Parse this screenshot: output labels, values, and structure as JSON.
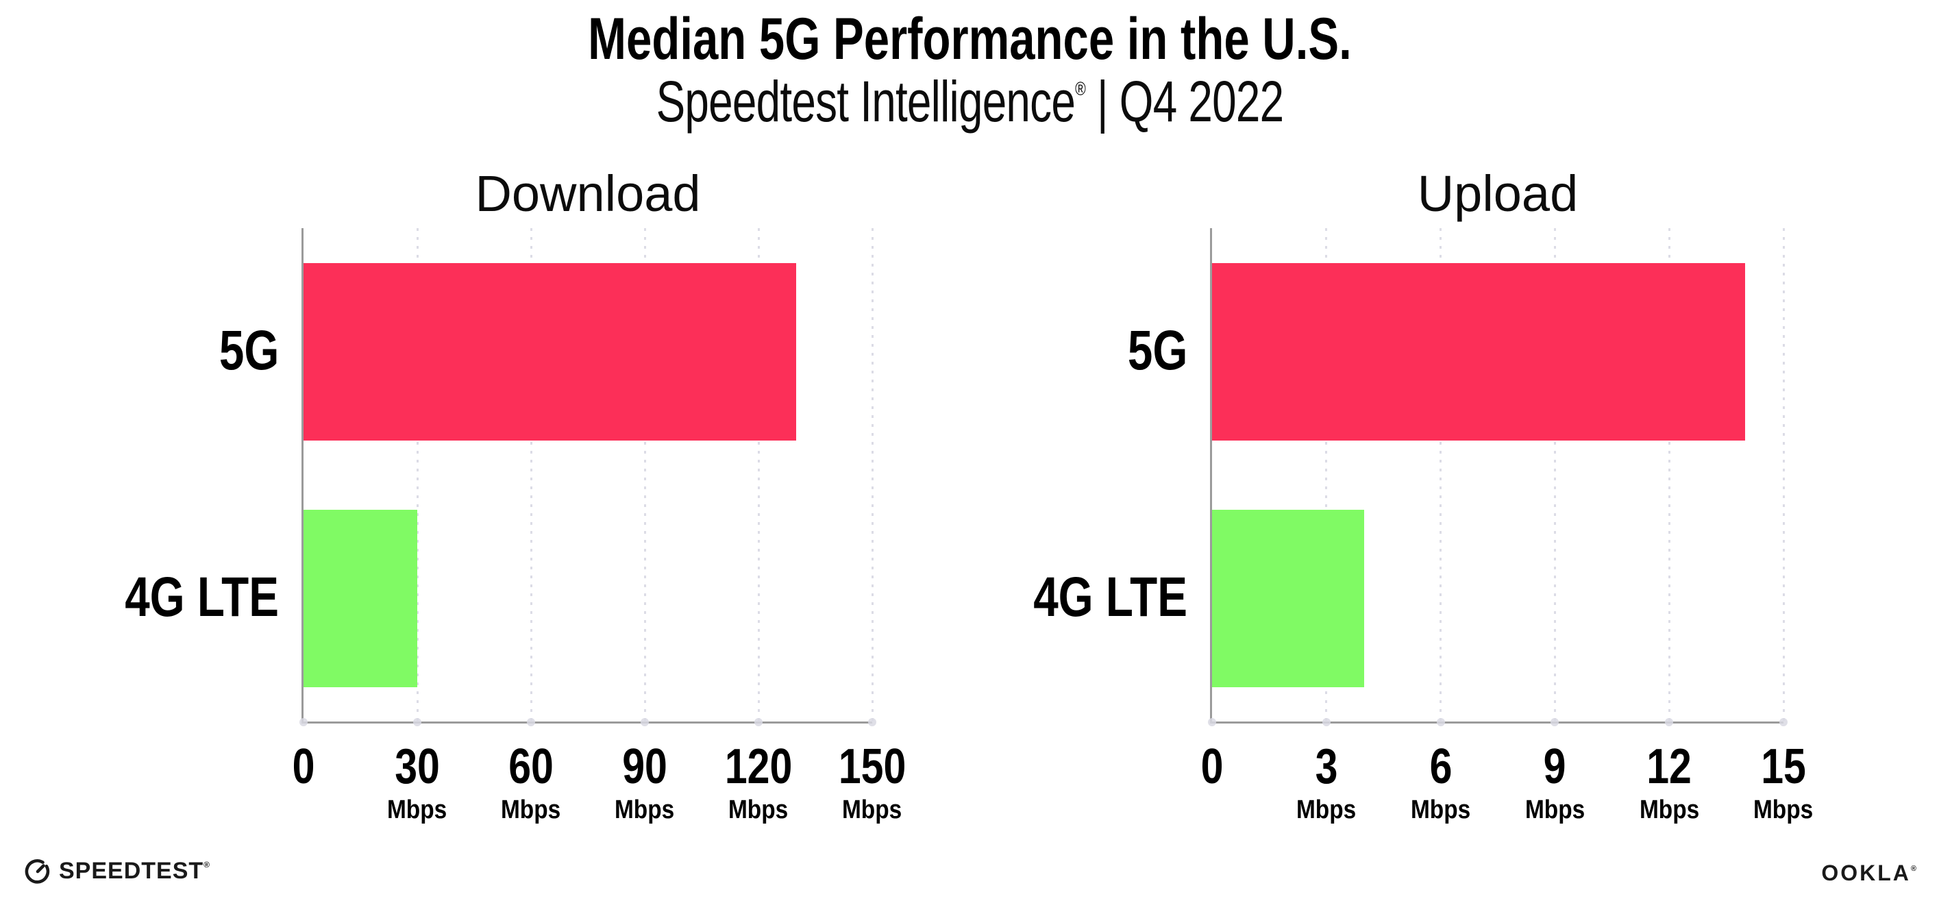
{
  "title": "Median 5G Performance in the U.S.",
  "subtitle": {
    "brand": "Speedtest Intelligence",
    "reg": "®",
    "rest": " | Q4 2022"
  },
  "colors": {
    "bar_5g": "#fc2f58",
    "bar_4g": "#80fa64",
    "axis": "#9b9b9b",
    "gridline": "#dcdce6",
    "text": "#000000"
  },
  "chart_data": [
    {
      "type": "bar",
      "orientation": "horizontal",
      "title": "Download",
      "categories": [
        "5G",
        "4G LTE"
      ],
      "values": [
        130,
        30
      ],
      "unit": "Mbps",
      "xlim": [
        0,
        150
      ],
      "xticks": [
        0,
        30,
        60,
        90,
        120,
        150
      ],
      "show_unit_on_zero": false,
      "bar_colors": [
        "#fc2f58",
        "#80fa64"
      ],
      "grid": "dotted-vertical",
      "legend": "none"
    },
    {
      "type": "bar",
      "orientation": "horizontal",
      "title": "Upload",
      "categories": [
        "5G",
        "4G LTE"
      ],
      "values": [
        14,
        4
      ],
      "unit": "Mbps",
      "xlim": [
        0,
        15
      ],
      "xticks": [
        0,
        3,
        6,
        9,
        12,
        15
      ],
      "show_unit_on_zero": false,
      "bar_colors": [
        "#fc2f58",
        "#80fa64"
      ],
      "grid": "dotted-vertical",
      "legend": "none"
    }
  ],
  "footer": {
    "speedtest_label": "SPEEDTEST",
    "speedtest_reg": "®",
    "ookla_label": "OOKLA",
    "ookla_reg": "®"
  }
}
